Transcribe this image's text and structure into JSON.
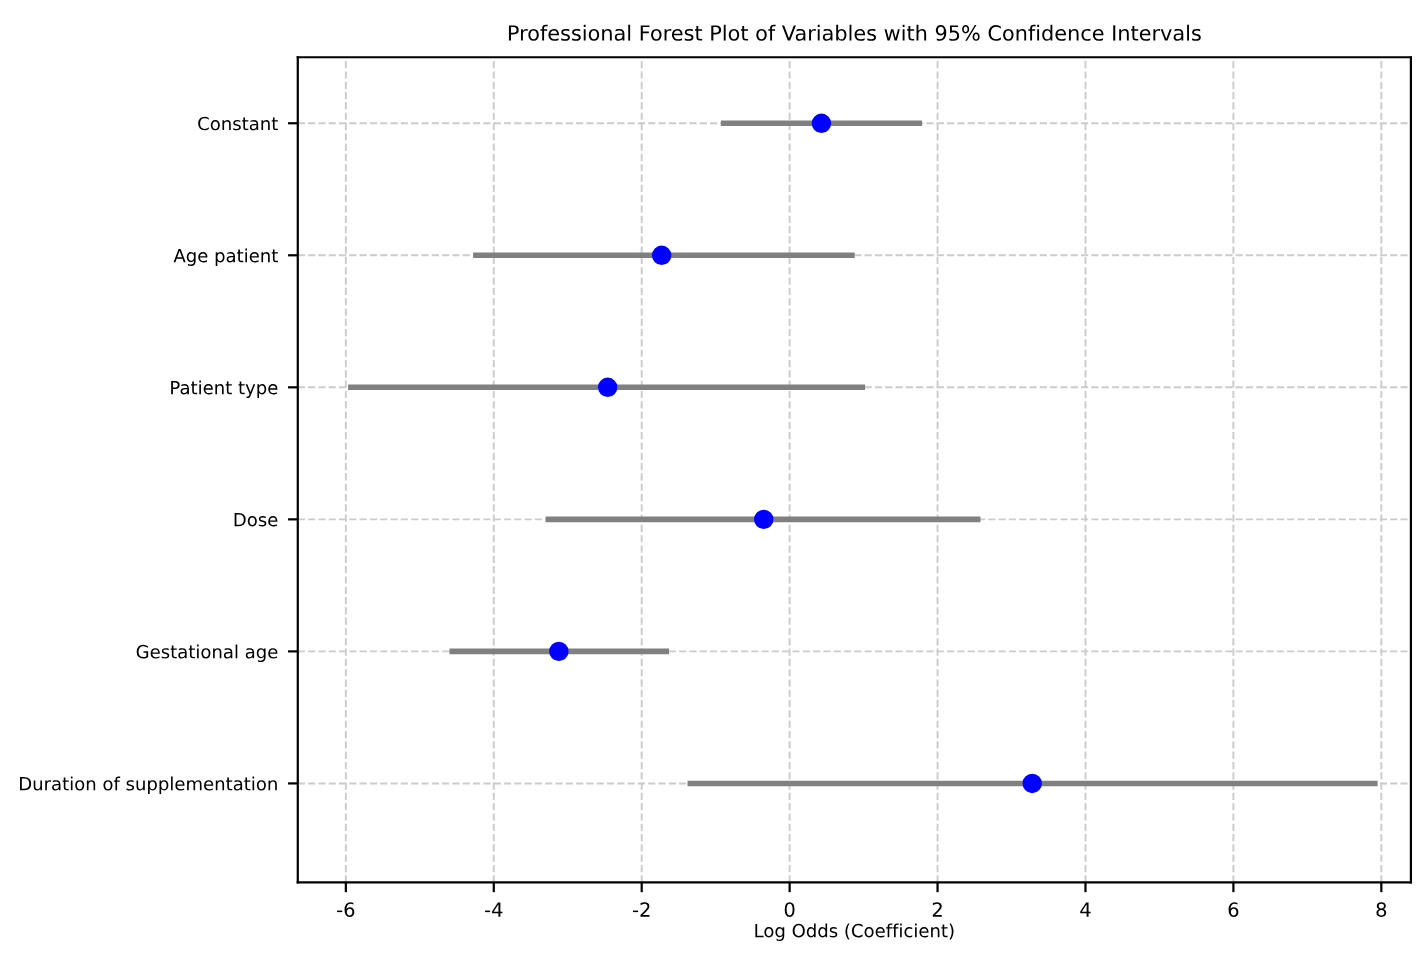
{
  "chart_data": {
    "type": "scatter",
    "title": "Professional Forest Plot of Variables with 95% Confidence Intervals",
    "xlabel": "Log Odds (Coefficient)",
    "orientation": "horizontal",
    "categories": [
      "Constant",
      "Age patient",
      "Patient type",
      "Dose",
      "Gestational age",
      "Duration of supplementation"
    ],
    "series": [
      {
        "color": "#0000ff",
        "values": [
          0.43,
          -1.73,
          -2.46,
          -0.35,
          -3.12,
          3.28
        ],
        "errors": [
          [
            -0.93,
            1.79
          ],
          [
            -4.28,
            0.88
          ],
          [
            -5.97,
            1.02
          ],
          [
            -3.3,
            2.58
          ],
          [
            -4.6,
            -1.63
          ],
          [
            -1.38,
            7.95
          ]
        ]
      }
    ],
    "xlim": [
      -6.65,
      8.4
    ],
    "xticks": [
      -6,
      -4,
      -2,
      0,
      2,
      4,
      6,
      8
    ],
    "grid": true,
    "marker": "circle"
  }
}
